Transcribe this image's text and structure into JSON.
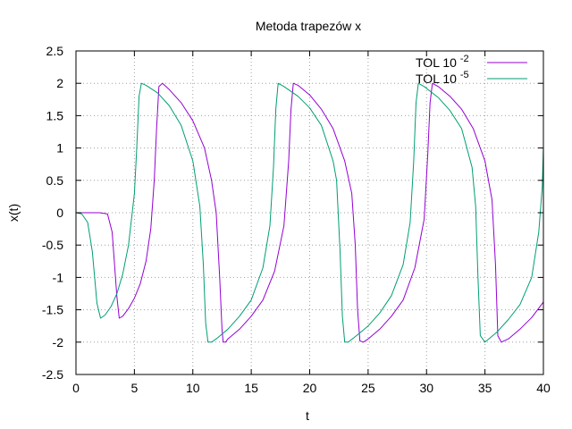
{
  "chart_data": {
    "type": "line",
    "title": "Metoda trapezów x",
    "xlabel": "t",
    "ylabel": "x(t)",
    "xlim": [
      0,
      40
    ],
    "ylim": [
      -2.5,
      2.5
    ],
    "xticks": [
      0,
      5,
      10,
      15,
      20,
      25,
      30,
      35,
      40
    ],
    "yticks": [
      -2.5,
      -2,
      -1.5,
      -1,
      -0.5,
      0,
      0.5,
      1,
      1.5,
      2,
      2.5
    ],
    "grid": true,
    "legend_position": "top-right",
    "series": [
      {
        "name": "TOL 10",
        "name_exponent": "-2",
        "color": "#9400D3",
        "x": [
          0,
          2,
          2.7,
          3.1,
          3.5,
          3.7,
          4.0,
          4.5,
          5.0,
          5.5,
          6.0,
          6.4,
          6.7,
          6.9,
          7.1,
          7.4,
          8.0,
          9.0,
          10.0,
          11.0,
          11.6,
          12.0,
          12.3,
          12.5,
          12.6,
          12.8,
          13.0,
          14.0,
          15.0,
          16.0,
          17.0,
          17.8,
          18.2,
          18.4,
          18.6,
          19.0,
          20.0,
          21.0,
          22.0,
          23.0,
          23.6,
          23.9,
          24.1,
          24.3,
          24.6,
          25.0,
          26.0,
          27.0,
          28.0,
          29.0,
          29.8,
          30.1,
          30.3,
          30.5,
          31.0,
          32.0,
          33.0,
          34.0,
          35.0,
          35.6,
          35.9,
          36.1,
          36.4,
          37.0,
          38.0,
          39.0,
          40.0
        ],
        "y": [
          0,
          0,
          -0.02,
          -0.3,
          -1.3,
          -1.63,
          -1.6,
          -1.48,
          -1.32,
          -1.1,
          -0.75,
          -0.25,
          0.5,
          1.3,
          1.95,
          2.0,
          1.9,
          1.7,
          1.42,
          1.0,
          0.5,
          0.0,
          -1.0,
          -1.8,
          -2.0,
          -2.0,
          -1.95,
          -1.8,
          -1.6,
          -1.35,
          -0.9,
          -0.2,
          0.8,
          1.6,
          2.0,
          1.97,
          1.82,
          1.6,
          1.3,
          0.8,
          0.3,
          -0.5,
          -1.5,
          -1.98,
          -2.0,
          -1.95,
          -1.8,
          -1.6,
          -1.35,
          -0.85,
          -0.1,
          0.9,
          1.7,
          2.0,
          1.95,
          1.8,
          1.6,
          1.3,
          0.8,
          0.2,
          -0.8,
          -1.9,
          -2.0,
          -1.95,
          -1.8,
          -1.62,
          -1.38
        ]
      },
      {
        "name": "TOL 10",
        "name_exponent": "-5",
        "color": "#009E73",
        "x": [
          0,
          0.5,
          1.0,
          1.4,
          1.8,
          2.1,
          2.5,
          3.0,
          3.5,
          4.0,
          4.5,
          5.0,
          5.2,
          5.4,
          5.6,
          6.0,
          7.0,
          8.0,
          9.0,
          10.0,
          10.6,
          10.9,
          11.1,
          11.3,
          11.6,
          12.0,
          13.0,
          14.0,
          15.0,
          16.0,
          16.6,
          16.9,
          17.1,
          17.3,
          17.8,
          19.0,
          20.0,
          21.0,
          22.0,
          22.3,
          22.6,
          22.8,
          23.0,
          23.3,
          24.0,
          25.0,
          26.0,
          27.0,
          28.0,
          28.6,
          28.9,
          29.1,
          29.3,
          29.8,
          31.0,
          32.0,
          33.0,
          33.9,
          34.2,
          34.4,
          34.6,
          35.0,
          36.0,
          37.0,
          38.0,
          39.0,
          39.6,
          39.9,
          40.0
        ],
        "y": [
          0,
          -0.02,
          -0.15,
          -0.6,
          -1.4,
          -1.63,
          -1.58,
          -1.45,
          -1.25,
          -0.95,
          -0.5,
          0.3,
          1.0,
          1.8,
          2.0,
          1.97,
          1.85,
          1.65,
          1.35,
          0.8,
          0.1,
          -0.8,
          -1.7,
          -2.0,
          -2.0,
          -1.95,
          -1.8,
          -1.6,
          -1.35,
          -0.85,
          -0.2,
          0.7,
          1.6,
          2.0,
          1.95,
          1.8,
          1.62,
          1.35,
          0.8,
          0.5,
          -0.6,
          -1.6,
          -2.0,
          -2.0,
          -1.9,
          -1.75,
          -1.55,
          -1.28,
          -0.8,
          -0.15,
          0.8,
          1.7,
          2.0,
          1.95,
          1.78,
          1.58,
          1.3,
          0.7,
          0.1,
          -1.0,
          -1.9,
          -2.0,
          -1.85,
          -1.65,
          -1.42,
          -1.0,
          -0.3,
          0.4,
          1.0
        ]
      }
    ]
  }
}
